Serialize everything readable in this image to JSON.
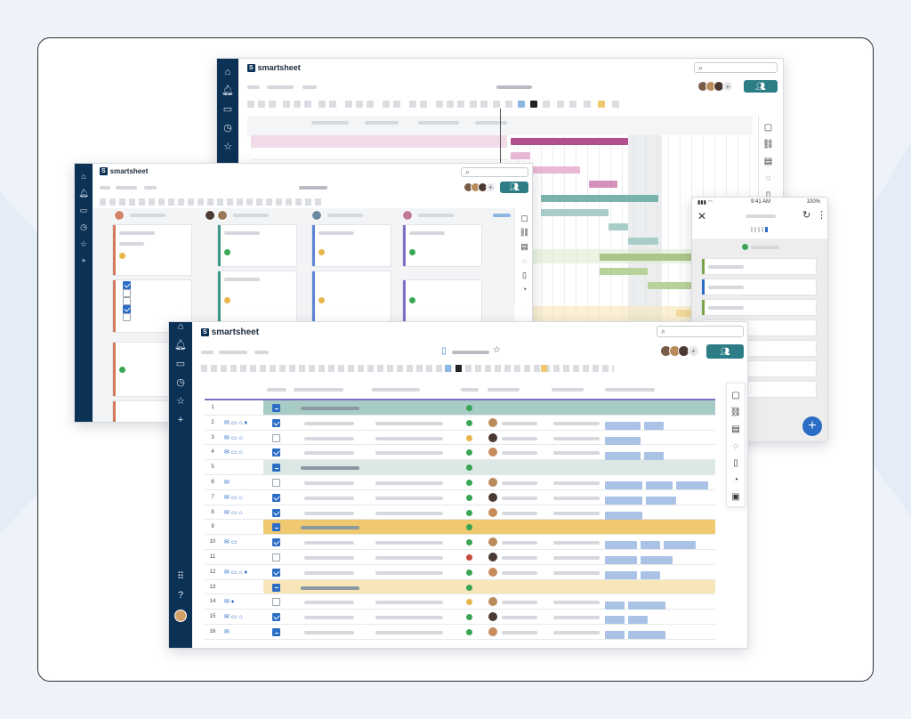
{
  "brand": {
    "name": "smartsheet",
    "mark": "S"
  },
  "nav_icons": [
    "home-icon",
    "bell-icon",
    "folder-icon",
    "clock-icon",
    "star-icon",
    "plus-icon",
    "apps-icon",
    "help-icon"
  ],
  "grid_rows": [
    {
      "n": "1",
      "type": "group",
      "color": "#a9cbc6",
      "cb": "minus",
      "status": "#3aa655",
      "chips": []
    },
    {
      "n": "2",
      "type": "row",
      "cb": "on",
      "status": "#3aa655",
      "icons": "✉ ▭ ⌂ ♦",
      "chips": [
        40,
        22
      ]
    },
    {
      "n": "3",
      "type": "row",
      "cb": "off",
      "status": "#e8b64a",
      "icons": "✉ ▭ ⌂",
      "chips": [
        40
      ]
    },
    {
      "n": "4",
      "type": "row",
      "cb": "on",
      "status": "#3aa655",
      "icons": "✉ ▭ ⌂",
      "chips": [
        40,
        22
      ]
    },
    {
      "n": "5",
      "type": "group",
      "color": "#dbe8e5",
      "cb": "minus",
      "status": "#3aa655",
      "chips": []
    },
    {
      "n": "6",
      "type": "row",
      "cb": "off",
      "status": "#3aa655",
      "icons": "✉",
      "chips": [
        42,
        30,
        36
      ]
    },
    {
      "n": "7",
      "type": "row",
      "cb": "on",
      "status": "#3aa655",
      "icons": "✉ ▭ ⌂",
      "chips": [
        42,
        34
      ]
    },
    {
      "n": "8",
      "type": "row",
      "cb": "on",
      "status": "#3aa655",
      "icons": "✉ ▭ ⌂",
      "chips": [
        42
      ]
    },
    {
      "n": "9",
      "type": "group",
      "color": "#f0c870",
      "cb": "minus",
      "status": "#3aa655",
      "chips": []
    },
    {
      "n": "10",
      "type": "row",
      "cb": "on",
      "status": "#3aa655",
      "icons": "✉ ▭",
      "chips": [
        36,
        22,
        36
      ]
    },
    {
      "n": "11",
      "type": "row",
      "cb": "off",
      "status": "#c94a3a",
      "icons": "",
      "chips": [
        36,
        36
      ]
    },
    {
      "n": "12",
      "type": "row",
      "cb": "on",
      "status": "#3aa655",
      "icons": "✉ ▭ ⌂ ♦",
      "chips": [
        36,
        22
      ]
    },
    {
      "n": "13",
      "type": "group",
      "color": "#f8e6b8",
      "cb": "minus",
      "status": "#3aa655",
      "chips": []
    },
    {
      "n": "14",
      "type": "row",
      "cb": "off",
      "status": "#e8b64a",
      "icons": "✉ ♦",
      "chips": [
        22,
        42
      ]
    },
    {
      "n": "15",
      "type": "row",
      "cb": "on",
      "status": "#3aa655",
      "icons": "✉ ▭ ⌂",
      "chips": [
        22,
        22
      ]
    },
    {
      "n": "16",
      "type": "row",
      "cb": "minus",
      "status": "#3aa655",
      "icons": "✉",
      "chips": [
        22,
        42
      ]
    }
  ],
  "mobile": {
    "time": "9:41 AM",
    "battery": "100%"
  },
  "colors": {
    "navy": "#0b3155",
    "teal": "#2d7d86",
    "blue": "#2b6cc4"
  }
}
